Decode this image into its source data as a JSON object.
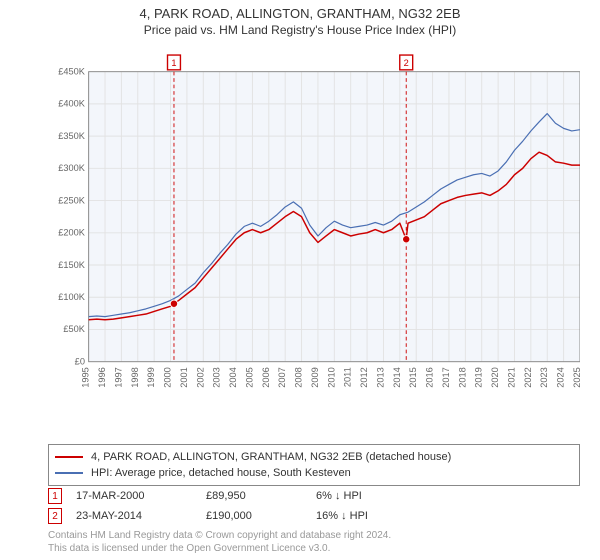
{
  "titles": {
    "line1": "4, PARK ROAD, ALLINGTON, GRANTHAM, NG32 2EB",
    "line2": "Price paid vs. HM Land Registry's House Price Index (HPI)"
  },
  "chart": {
    "type": "line",
    "plot_background_color": "#f3f6fb",
    "page_background_color": "#ffffff",
    "grid_color": "#e2e2e2",
    "axis_color": "#888888",
    "x": {
      "min": 1995,
      "max": 2025,
      "ticks": [
        1995,
        1996,
        1997,
        1998,
        1999,
        2000,
        2001,
        2002,
        2003,
        2004,
        2005,
        2006,
        2007,
        2008,
        2009,
        2010,
        2011,
        2012,
        2013,
        2014,
        2015,
        2016,
        2017,
        2018,
        2019,
        2020,
        2021,
        2022,
        2023,
        2024,
        2025
      ],
      "tick_label_rotation_deg": -90,
      "tick_fontsize": 10,
      "tick_color": "#666666"
    },
    "y": {
      "min": 0,
      "max": 450000,
      "ticks": [
        0,
        50000,
        100000,
        150000,
        200000,
        250000,
        300000,
        350000,
        400000,
        450000
      ],
      "tick_labels": [
        "£0",
        "£50K",
        "£100K",
        "£150K",
        "£200K",
        "£250K",
        "£300K",
        "£350K",
        "£400K",
        "£450K"
      ],
      "tick_fontsize": 10,
      "tick_color": "#666666"
    },
    "series": [
      {
        "name": "price_paid",
        "color": "#cc0000",
        "line_width": 1.6,
        "points": [
          [
            1995.0,
            65000
          ],
          [
            1995.5,
            66000
          ],
          [
            1996.0,
            65000
          ],
          [
            1996.5,
            66000
          ],
          [
            1997.0,
            68000
          ],
          [
            1997.5,
            70000
          ],
          [
            1998.0,
            72000
          ],
          [
            1998.5,
            74000
          ],
          [
            1999.0,
            78000
          ],
          [
            1999.5,
            82000
          ],
          [
            2000.0,
            86000
          ],
          [
            2000.21,
            89950
          ],
          [
            2000.5,
            95000
          ],
          [
            2001.0,
            105000
          ],
          [
            2001.5,
            115000
          ],
          [
            2002.0,
            130000
          ],
          [
            2002.5,
            145000
          ],
          [
            2003.0,
            160000
          ],
          [
            2003.5,
            175000
          ],
          [
            2004.0,
            190000
          ],
          [
            2004.5,
            200000
          ],
          [
            2005.0,
            205000
          ],
          [
            2005.5,
            200000
          ],
          [
            2006.0,
            205000
          ],
          [
            2006.5,
            215000
          ],
          [
            2007.0,
            225000
          ],
          [
            2007.5,
            233000
          ],
          [
            2008.0,
            225000
          ],
          [
            2008.5,
            200000
          ],
          [
            2009.0,
            185000
          ],
          [
            2009.5,
            195000
          ],
          [
            2010.0,
            205000
          ],
          [
            2010.5,
            200000
          ],
          [
            2011.0,
            195000
          ],
          [
            2011.5,
            198000
          ],
          [
            2012.0,
            200000
          ],
          [
            2012.5,
            205000
          ],
          [
            2013.0,
            200000
          ],
          [
            2013.5,
            205000
          ],
          [
            2014.0,
            215000
          ],
          [
            2014.39,
            190000
          ],
          [
            2014.5,
            215000
          ],
          [
            2015.0,
            220000
          ],
          [
            2015.5,
            225000
          ],
          [
            2016.0,
            235000
          ],
          [
            2016.5,
            245000
          ],
          [
            2017.0,
            250000
          ],
          [
            2017.5,
            255000
          ],
          [
            2018.0,
            258000
          ],
          [
            2018.5,
            260000
          ],
          [
            2019.0,
            262000
          ],
          [
            2019.5,
            258000
          ],
          [
            2020.0,
            265000
          ],
          [
            2020.5,
            275000
          ],
          [
            2021.0,
            290000
          ],
          [
            2021.5,
            300000
          ],
          [
            2022.0,
            315000
          ],
          [
            2022.5,
            325000
          ],
          [
            2023.0,
            320000
          ],
          [
            2023.5,
            310000
          ],
          [
            2024.0,
            308000
          ],
          [
            2024.5,
            305000
          ],
          [
            2025.0,
            305000
          ]
        ]
      },
      {
        "name": "hpi",
        "color": "#4a6fb3",
        "line_width": 1.3,
        "points": [
          [
            1995.0,
            70000
          ],
          [
            1995.5,
            71000
          ],
          [
            1996.0,
            70000
          ],
          [
            1996.5,
            72000
          ],
          [
            1997.0,
            74000
          ],
          [
            1997.5,
            76000
          ],
          [
            1998.0,
            79000
          ],
          [
            1998.5,
            82000
          ],
          [
            1999.0,
            86000
          ],
          [
            1999.5,
            90000
          ],
          [
            2000.0,
            95000
          ],
          [
            2000.5,
            102000
          ],
          [
            2001.0,
            112000
          ],
          [
            2001.5,
            122000
          ],
          [
            2002.0,
            138000
          ],
          [
            2002.5,
            152000
          ],
          [
            2003.0,
            168000
          ],
          [
            2003.5,
            182000
          ],
          [
            2004.0,
            198000
          ],
          [
            2004.5,
            210000
          ],
          [
            2005.0,
            215000
          ],
          [
            2005.5,
            210000
          ],
          [
            2006.0,
            218000
          ],
          [
            2006.5,
            228000
          ],
          [
            2007.0,
            240000
          ],
          [
            2007.5,
            248000
          ],
          [
            2008.0,
            238000
          ],
          [
            2008.5,
            212000
          ],
          [
            2009.0,
            195000
          ],
          [
            2009.5,
            208000
          ],
          [
            2010.0,
            218000
          ],
          [
            2010.5,
            212000
          ],
          [
            2011.0,
            208000
          ],
          [
            2011.5,
            210000
          ],
          [
            2012.0,
            212000
          ],
          [
            2012.5,
            216000
          ],
          [
            2013.0,
            212000
          ],
          [
            2013.5,
            218000
          ],
          [
            2014.0,
            228000
          ],
          [
            2014.5,
            232000
          ],
          [
            2015.0,
            240000
          ],
          [
            2015.5,
            248000
          ],
          [
            2016.0,
            258000
          ],
          [
            2016.5,
            268000
          ],
          [
            2017.0,
            275000
          ],
          [
            2017.5,
            282000
          ],
          [
            2018.0,
            286000
          ],
          [
            2018.5,
            290000
          ],
          [
            2019.0,
            292000
          ],
          [
            2019.5,
            288000
          ],
          [
            2020.0,
            296000
          ],
          [
            2020.5,
            310000
          ],
          [
            2021.0,
            328000
          ],
          [
            2021.5,
            342000
          ],
          [
            2022.0,
            358000
          ],
          [
            2022.5,
            372000
          ],
          [
            2023.0,
            385000
          ],
          [
            2023.5,
            370000
          ],
          [
            2024.0,
            362000
          ],
          [
            2024.5,
            358000
          ],
          [
            2025.0,
            360000
          ]
        ]
      }
    ],
    "sale_markers": [
      {
        "n": "1",
        "year": 2000.21,
        "y": 89950,
        "line_color": "#cc0000",
        "dash": "4 3"
      },
      {
        "n": "2",
        "year": 2014.39,
        "y": 190000,
        "line_color": "#cc0000",
        "dash": "4 3"
      }
    ],
    "sale_dot": {
      "radius": 4,
      "fill": "#cc0000",
      "stroke": "#ffffff",
      "stroke_width": 1
    }
  },
  "legend": {
    "items": [
      {
        "color": "#cc0000",
        "label": "4, PARK ROAD, ALLINGTON, GRANTHAM, NG32 2EB (detached house)"
      },
      {
        "color": "#4a6fb3",
        "label": "HPI: Average price, detached house, South Kesteven"
      }
    ]
  },
  "sales": [
    {
      "n": "1",
      "date": "17-MAR-2000",
      "price": "£89,950",
      "delta": "6% ↓ HPI"
    },
    {
      "n": "2",
      "date": "23-MAY-2014",
      "price": "£190,000",
      "delta": "16% ↓ HPI"
    }
  ],
  "footer": {
    "l1": "Contains HM Land Registry data © Crown copyright and database right 2024.",
    "l2": "This data is licensed under the Open Government Licence v3.0."
  }
}
